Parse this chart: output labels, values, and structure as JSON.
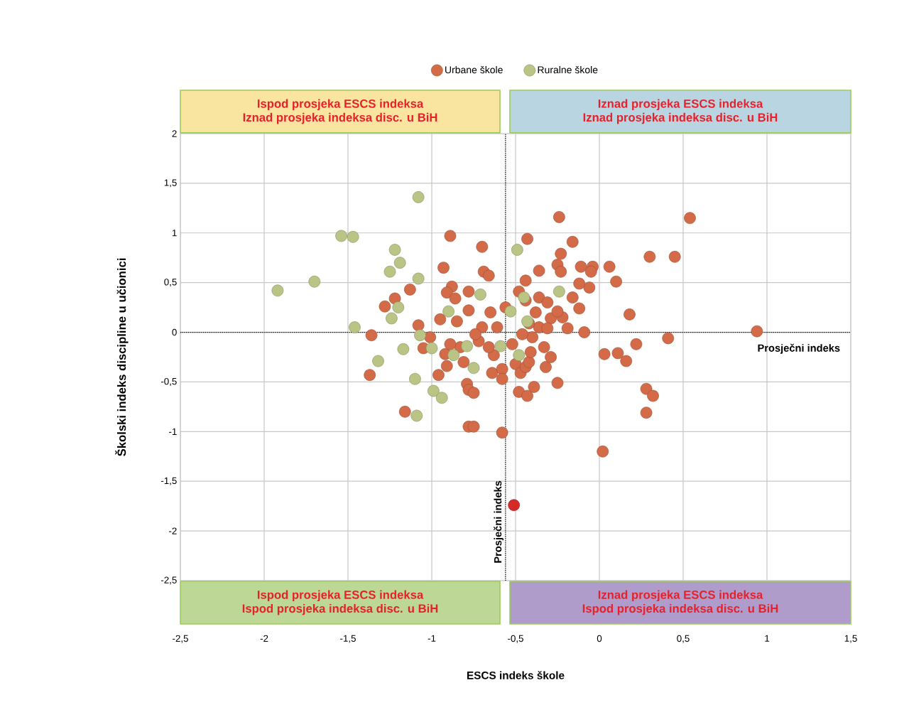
{
  "chart_data": {
    "type": "scatter",
    "xlabel": "ESCS indeks škole",
    "ylabel": "Školski indeks discipline u učionici",
    "xlim": [
      -2.5,
      1.5
    ],
    "ylim": [
      -2.5,
      2
    ],
    "xticks": [
      {
        "value": -2.5,
        "label": "-2,5"
      },
      -2,
      {
        "value": -1.5,
        "label": "-1,5"
      },
      -1,
      {
        "value": -0.5,
        "label": "-0,5"
      },
      0,
      {
        "value": 0.5,
        "label": "0,5"
      },
      1,
      {
        "value": 1.5,
        "label": "1,5"
      }
    ],
    "yticks": [
      {
        "value": -2.5,
        "label": "-2,5"
      },
      -2,
      {
        "value": -1.5,
        "label": "-1,5"
      },
      -1,
      {
        "value": -0.5,
        "label": "-0,5"
      },
      0,
      {
        "value": 0.5,
        "label": "0,5"
      },
      1,
      {
        "value": 1.5,
        "label": "1,5"
      },
      2
    ],
    "grid": true,
    "legend": "top",
    "series": [
      {
        "name": "Urbane škole",
        "color": "#d46b48",
        "x": [
          -0.89,
          -0.7,
          -0.93,
          -1.13,
          -1.22,
          -1.28,
          -1.36,
          -1.37,
          -1.16,
          -1.08,
          -0.88,
          -0.78,
          -0.69,
          -0.66,
          -0.91,
          -0.86,
          -1.01,
          -0.65,
          -0.78,
          -0.85,
          -0.95,
          -0.7,
          -0.61,
          -0.56,
          -0.96,
          -0.91,
          -0.92,
          -0.81,
          -0.83,
          -1.05,
          -0.79,
          -0.78,
          -0.75,
          -0.78,
          -0.75,
          -0.64,
          -0.58,
          -0.58,
          -0.58,
          -0.63,
          -0.66,
          -0.72,
          -0.89,
          -0.74,
          -0.5,
          -0.47,
          -0.44,
          -0.42,
          -0.48,
          -0.43,
          -0.39,
          -0.32,
          -0.29,
          -0.33,
          -0.25,
          -0.19,
          -0.09,
          0.03,
          0.11,
          0.16,
          0.22,
          0.41,
          0.28,
          0.32,
          0.28,
          0.02,
          0.94,
          0.54,
          -0.24,
          -0.43,
          -0.16,
          -0.23,
          -0.25,
          -0.23,
          -0.36,
          -0.44,
          -0.11,
          -0.04,
          -0.05,
          0.06,
          0.1,
          0.3,
          0.45,
          0.18,
          -0.06,
          -0.12,
          -0.16,
          -0.12,
          -0.22,
          -0.48,
          -0.44,
          -0.36,
          -0.31,
          -0.29,
          -0.36,
          -0.42,
          -0.4,
          -0.46,
          -0.52,
          -0.41,
          -0.31,
          -0.25,
          -0.38
        ],
        "values": [
          0.97,
          0.86,
          0.65,
          0.43,
          0.34,
          0.26,
          -0.03,
          -0.43,
          -0.8,
          0.07,
          0.46,
          0.41,
          0.61,
          0.57,
          0.4,
          0.34,
          -0.05,
          0.2,
          0.22,
          0.11,
          0.13,
          0.05,
          0.05,
          0.25,
          -0.43,
          -0.34,
          -0.22,
          -0.3,
          -0.15,
          -0.16,
          -0.52,
          -0.58,
          -0.61,
          -0.95,
          -0.95,
          -0.41,
          -0.37,
          -0.47,
          -1.01,
          -0.23,
          -0.15,
          -0.09,
          -0.12,
          -0.02,
          -0.32,
          -0.41,
          -0.35,
          -0.3,
          -0.6,
          -0.64,
          -0.55,
          -0.35,
          -0.25,
          -0.15,
          -0.51,
          0.04,
          0.0,
          -0.22,
          -0.21,
          -0.29,
          -0.12,
          -0.06,
          -0.57,
          -0.64,
          -0.81,
          -1.2,
          0.01,
          1.15,
          1.16,
          0.94,
          0.91,
          0.79,
          0.68,
          0.61,
          0.62,
          0.52,
          0.66,
          0.66,
          0.61,
          0.66,
          0.51,
          0.76,
          0.76,
          0.18,
          0.45,
          0.49,
          0.35,
          0.24,
          0.15,
          0.41,
          0.32,
          0.35,
          0.3,
          0.14,
          0.05,
          0.09,
          -0.05,
          -0.02,
          -0.12,
          -0.2,
          0.04,
          0.21,
          0.2
        ]
      },
      {
        "name": "Ruralne škole",
        "color": "#b9c485",
        "x": [
          -1.92,
          -1.7,
          -1.54,
          -1.47,
          -1.08,
          -1.22,
          -1.19,
          -1.25,
          -1.08,
          -1.2,
          -1.24,
          -1.46,
          -0.9,
          -0.71,
          -0.49,
          -0.53,
          -0.45,
          -0.43,
          -0.24,
          -1.07,
          -1.17,
          -1.32,
          -1.1,
          -1.0,
          -0.87,
          -0.79,
          -0.99,
          -0.94,
          -1.09,
          -0.75,
          -0.59,
          -0.48
        ],
        "values": [
          0.42,
          0.51,
          0.97,
          0.96,
          1.36,
          0.83,
          0.7,
          0.61,
          0.54,
          0.25,
          0.14,
          0.05,
          0.21,
          0.38,
          0.83,
          0.21,
          0.35,
          0.11,
          0.41,
          -0.03,
          -0.17,
          -0.29,
          -0.47,
          -0.16,
          -0.23,
          -0.14,
          -0.59,
          -0.66,
          -0.84,
          -0.36,
          -0.14,
          -0.23
        ]
      },
      {
        "color": "#d42a2a",
        "x": [
          -0.51
        ],
        "values": [
          -1.74
        ]
      }
    ],
    "ref_lines": [
      {
        "axis": "x",
        "value": -0.56,
        "label": "Prosječni indeks",
        "color": "#000000",
        "line_style": "dotted"
      },
      {
        "axis": "y",
        "value": 0,
        "label": "Prosječni indeks",
        "color": "#000000",
        "line_style": "dotted"
      }
    ],
    "annotations": [
      "Ispod prosjeka ESCS indeksa",
      "Iznad prosjeka indeksa disc. u BiH",
      "Iznad prosjeka ESCS indeksa",
      "Iznad prosjeka indeksa disc. u BiH",
      "Ispod prosjeka ESCS indeksa",
      "Ispod prosjeka indeksa disc. u BiH",
      "Iznad prosjeka ESCS indeksa",
      "Ispod prosjeka indeksa disc. u BiH"
    ]
  }
}
